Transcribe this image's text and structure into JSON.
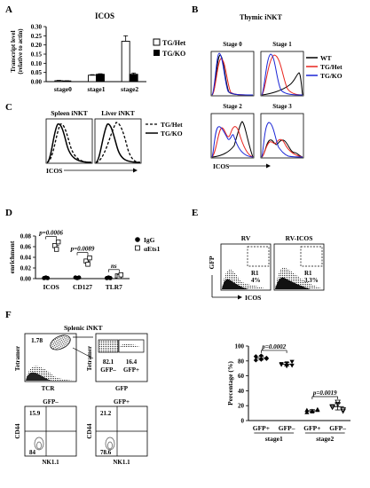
{
  "panels": {
    "A": "A",
    "B": "B",
    "C": "C",
    "D": "D",
    "E": "E",
    "F": "F"
  },
  "panelA": {
    "title": "ICOS",
    "ylabel_line1": "Transcript level",
    "ylabel_line2": "(relative to actin)",
    "legend": [
      "TG/Het",
      "TG/KO"
    ]
  },
  "panelB": {
    "title": "Thymic iNKT",
    "stage_titles": [
      "Stage 0",
      "Stage 1",
      "Stage 2",
      "Stage 3"
    ],
    "legend": [
      "WT",
      "TG/Het",
      "TG/KO"
    ],
    "colors": {
      "WT": "#000000",
      "TG/Het": "#e8241d",
      "TG/KO": "#1b26d6"
    },
    "xlabel": "ICOS"
  },
  "panelC": {
    "titles": [
      "Spleen iNKT",
      "Liver iNKT"
    ],
    "legend": [
      "TG/Het",
      "TG/KO"
    ],
    "xlabel": "ICOS"
  },
  "panelD": {
    "ylabel": "enrichment",
    "legend": [
      "IgG",
      "αEts1"
    ],
    "pvals": [
      "p=0.0006",
      "p=0.0089",
      "ns"
    ]
  },
  "panelE": {
    "titles": [
      "RV",
      "RV-ICOS"
    ],
    "gates": [
      {
        "label": "R1",
        "value": "4%"
      },
      {
        "label": "R1",
        "value": "3.3%"
      }
    ],
    "ylabel": "GFP",
    "xlabel": "ICOS"
  },
  "panelF": {
    "title": "Splenic iNKT",
    "gate_value": "1.78",
    "gfp_neg_value": "82.1",
    "gfp_neg_label": "GFP–",
    "gfp_pos_value": "16.4",
    "gfp_pos_label": "GFP+",
    "tetramer_label": "Tetramer",
    "tcr_label": "TCR",
    "gfp_axis_label": "GFP",
    "quad_titles": [
      "GFP–",
      "GFP+"
    ],
    "quad_values": [
      {
        "top": "15.9",
        "bottom": "84"
      },
      {
        "top": "21.2",
        "bottom": "78.6"
      }
    ],
    "cd44_label": "CD44",
    "nk11_label": "NK1.1",
    "dot_ylabel": "Percentage (%)",
    "dot_pvals": [
      "p=0.0002",
      "p=0.0019"
    ],
    "dot_groups": [
      "stage1",
      "stage2"
    ]
  },
  "chart_data": [
    {
      "type": "bar",
      "title": "ICOS",
      "ylabel": "Transcript level (relative to actin)",
      "categories": [
        "stage0",
        "stage1",
        "stage2"
      ],
      "ylim": [
        0,
        0.3
      ],
      "yticks": [
        0.0,
        0.05,
        0.1,
        0.15,
        0.2,
        0.25,
        0.3
      ],
      "series": [
        {
          "name": "TG/Het",
          "values": [
            0.005,
            0.035,
            0.22
          ],
          "errors": [
            0.002,
            0.003,
            0.03
          ]
        },
        {
          "name": "TG/KO",
          "values": [
            0.004,
            0.04,
            0.04
          ],
          "errors": [
            0.001,
            0.003,
            0.007
          ]
        }
      ]
    },
    {
      "type": "scatter",
      "ylabel": "enrichment",
      "categories": [
        "ICOS",
        "CD127",
        "TLR7"
      ],
      "ylim": [
        0,
        0.08
      ],
      "yticks": [
        0.0,
        0.02,
        0.04,
        0.06,
        0.08
      ],
      "series": [
        {
          "name": "IgG",
          "values": [
            [
              0.001,
              0.002,
              0.001
            ],
            [
              0.002,
              0.001,
              0.002
            ],
            [
              0.001,
              0.002,
              0.001
            ]
          ]
        },
        {
          "name": "αEts1",
          "values": [
            [
              0.062,
              0.055,
              0.069
            ],
            [
              0.033,
              0.027,
              0.039
            ],
            [
              0.005,
              0.004,
              0.007
            ]
          ]
        }
      ]
    },
    {
      "type": "scatter",
      "ylabel": "Percentage (%)",
      "categories": [
        "GFP+",
        "GFP–",
        "GFP+",
        "GFP–"
      ],
      "groups": [
        "stage1",
        "stage1",
        "stage2",
        "stage2"
      ],
      "ylim": [
        0,
        100
      ],
      "yticks": [
        0,
        20,
        40,
        60,
        80,
        100
      ],
      "series": [
        {
          "name": "",
          "values": [
            [
              86,
              82,
              84,
              81,
              87,
              83
            ],
            [
              76,
              73,
              79,
              75,
              77,
              74
            ],
            [
              14,
              12,
              15,
              11,
              13,
              14
            ],
            [
              19,
              22,
              15,
              18,
              25,
              13
            ]
          ]
        }
      ]
    }
  ]
}
